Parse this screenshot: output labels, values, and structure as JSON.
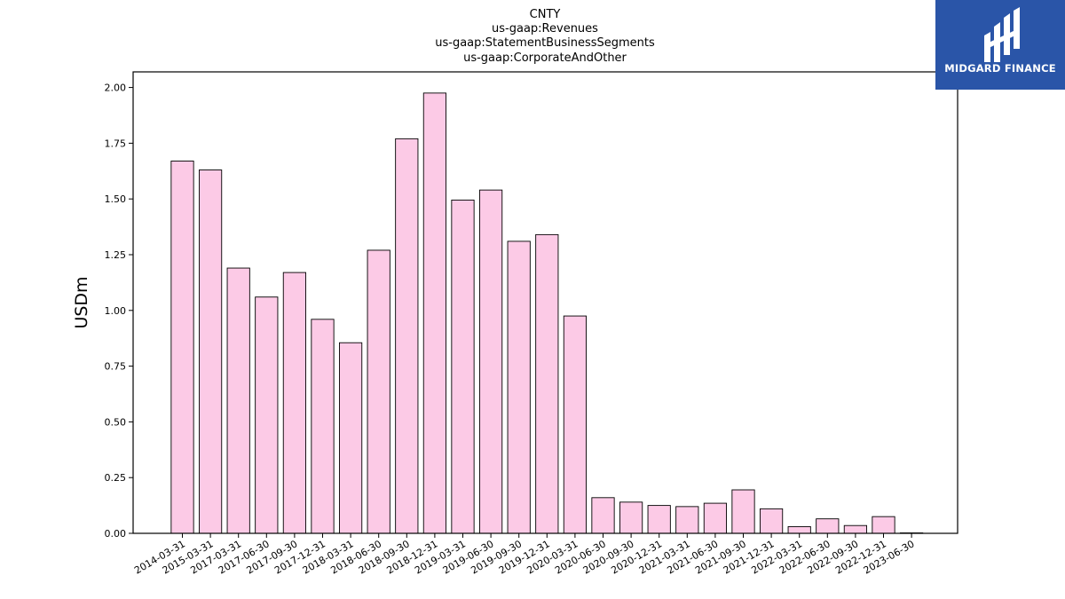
{
  "chart_data": {
    "type": "bar",
    "title_lines": [
      "CNTY",
      "us-gaap:Revenues",
      "us-gaap:StatementBusinessSegments",
      "us-gaap:CorporateAndOther"
    ],
    "xlabel": "",
    "ylabel": "USDm",
    "ylim": [
      0,
      2.07
    ],
    "yticks": [
      "0.00",
      "0.25",
      "0.50",
      "0.75",
      "1.00",
      "1.25",
      "1.50",
      "1.75",
      "2.00"
    ],
    "categories": [
      "2014-03-31",
      "2015-03-31",
      "2017-03-31",
      "2017-06-30",
      "2017-09-30",
      "2017-12-31",
      "2018-03-31",
      "2018-06-30",
      "2018-09-30",
      "2018-12-31",
      "2019-03-31",
      "2019-06-30",
      "2019-09-30",
      "2019-12-31",
      "2020-03-31",
      "2020-06-30",
      "2020-09-30",
      "2020-12-31",
      "2021-03-31",
      "2021-06-30",
      "2021-09-30",
      "2021-12-31",
      "2022-03-31",
      "2022-06-30",
      "2022-09-30",
      "2022-12-31",
      "2023-06-30"
    ],
    "values": [
      1.67,
      1.63,
      1.19,
      1.06,
      1.17,
      0.96,
      0.855,
      1.27,
      1.77,
      1.975,
      1.495,
      1.54,
      1.31,
      1.34,
      0.975,
      0.16,
      0.14,
      0.125,
      0.12,
      0.135,
      0.195,
      0.11,
      0.03,
      0.065,
      0.035,
      0.075,
      0.002
    ],
    "bar_color": "#fccae6",
    "edge_color": "#000000",
    "grid": false,
    "legend": "none"
  },
  "logo": {
    "text": "MIDGARD FINANCE",
    "background": "#2a55a8"
  }
}
